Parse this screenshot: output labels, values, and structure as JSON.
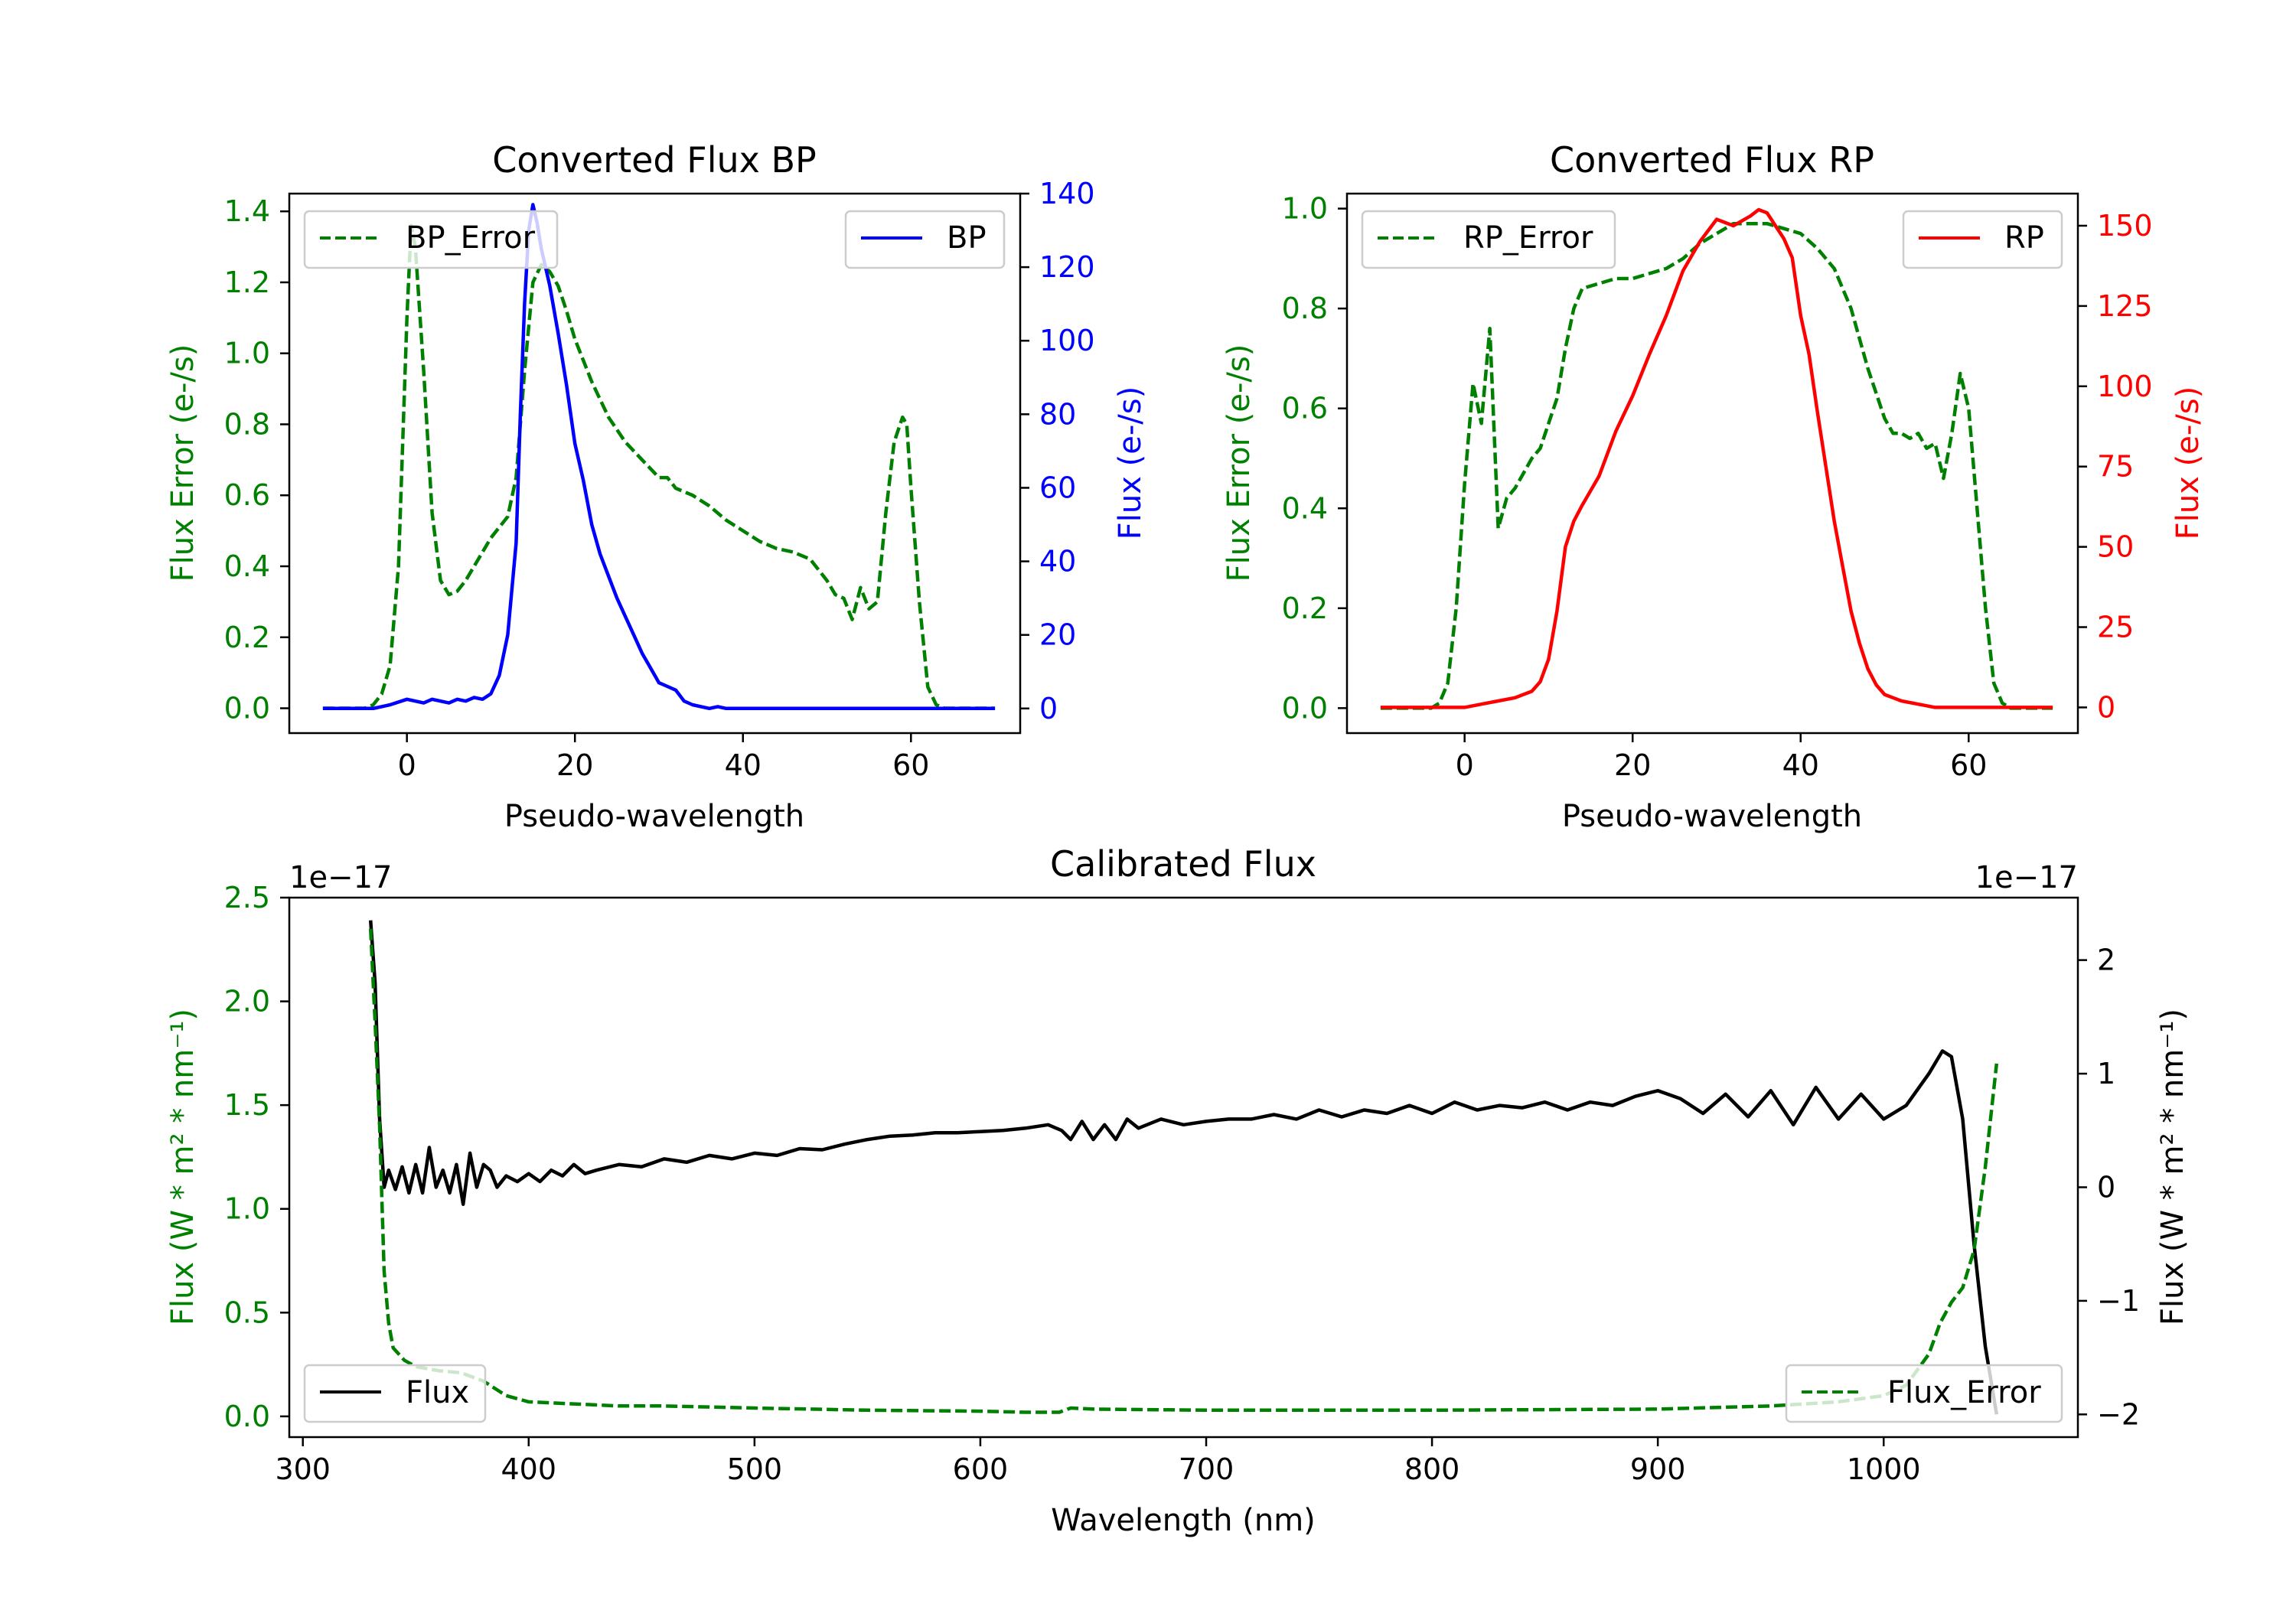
{
  "chart_data": [
    {
      "type": "line",
      "title": "Converted Flux BP",
      "xlabel": "Pseudo-wavelength",
      "ylabel_left": "Flux Error (e-/s)",
      "ylabel_right": "Flux (e-/s)",
      "xlim": [
        -14,
        73
      ],
      "ylim_left": [
        -0.07,
        1.45
      ],
      "ylim_right": [
        -6.7,
        140
      ],
      "x_ticks": [
        0,
        20,
        40,
        60
      ],
      "y_ticks_left": [
        0.0,
        0.2,
        0.4,
        0.6,
        0.8,
        1.0,
        1.2,
        1.4
      ],
      "y_ticks_right": [
        0,
        20,
        40,
        60,
        80,
        100,
        120,
        140
      ],
      "legend_left": {
        "label": "BP_Error",
        "placement": "upper-left"
      },
      "legend_right": {
        "label": "BP",
        "placement": "upper-right"
      },
      "series": [
        {
          "name": "BP_Error",
          "axis": "left",
          "color": "#008000",
          "dash": true,
          "x": [
            -10,
            -5,
            -4,
            -3,
            -2,
            -1,
            0,
            0.5,
            1,
            2,
            3,
            4,
            5,
            6,
            7,
            8,
            9,
            10,
            11,
            12,
            13,
            14,
            15,
            16,
            17,
            18,
            19,
            20,
            22,
            24,
            26,
            28,
            30,
            31,
            32,
            34,
            36,
            38,
            40,
            42,
            44,
            46,
            48,
            50,
            51,
            52,
            53,
            54,
            55,
            56,
            57,
            58,
            59,
            59.5,
            60,
            61,
            62,
            63,
            64,
            65,
            70
          ],
          "y": [
            0,
            0,
            0.01,
            0.04,
            0.12,
            0.4,
            1.1,
            1.36,
            1.3,
            0.95,
            0.55,
            0.36,
            0.32,
            0.33,
            0.36,
            0.4,
            0.44,
            0.48,
            0.51,
            0.54,
            0.65,
            0.95,
            1.2,
            1.25,
            1.23,
            1.19,
            1.12,
            1.04,
            0.92,
            0.82,
            0.75,
            0.7,
            0.65,
            0.65,
            0.62,
            0.6,
            0.57,
            0.53,
            0.5,
            0.47,
            0.45,
            0.44,
            0.42,
            0.36,
            0.32,
            0.31,
            0.25,
            0.34,
            0.28,
            0.3,
            0.55,
            0.75,
            0.82,
            0.8,
            0.62,
            0.3,
            0.06,
            0.01,
            0,
            0,
            0
          ]
        },
        {
          "name": "BP",
          "axis": "right",
          "color": "#0000ff",
          "dash": false,
          "x": [
            -10,
            -4,
            -2,
            0,
            1,
            2,
            3,
            4,
            5,
            6,
            7,
            8,
            9,
            10,
            11,
            12,
            13,
            13.5,
            14,
            14.5,
            15,
            15.5,
            16,
            17,
            18,
            19,
            20,
            21,
            22,
            23,
            24,
            25,
            26,
            27,
            28,
            29,
            30,
            31,
            32,
            33,
            34,
            35,
            36,
            37,
            38,
            40,
            42,
            44,
            46,
            48,
            50,
            52,
            54,
            56,
            58,
            60,
            62,
            64,
            70
          ],
          "y": [
            0,
            0,
            1,
            2.5,
            2,
            1.5,
            2.5,
            2,
            1.5,
            2.5,
            2,
            3,
            2.5,
            4,
            9,
            20,
            45,
            80,
            110,
            130,
            137,
            132,
            125,
            115,
            102,
            88,
            72,
            62,
            50,
            42,
            36,
            30,
            25,
            20,
            15,
            11,
            7,
            6,
            5,
            2,
            1,
            0.5,
            0,
            0.5,
            0,
            0,
            0,
            0,
            0,
            0,
            0,
            0,
            0,
            0,
            0,
            0,
            0,
            0,
            0
          ]
        }
      ]
    },
    {
      "type": "line",
      "title": "Converted Flux RP",
      "xlabel": "Pseudo-wavelength",
      "ylabel_left": "Flux Error (e-/s)",
      "ylabel_right": "Flux (e-/s)",
      "xlim": [
        -14,
        73
      ],
      "ylim_left": [
        -0.05,
        1.03
      ],
      "ylim_right": [
        -8,
        160
      ],
      "x_ticks": [
        0,
        20,
        40,
        60
      ],
      "y_ticks_left": [
        0.0,
        0.2,
        0.4,
        0.6,
        0.8,
        1.0
      ],
      "y_ticks_right": [
        0,
        25,
        50,
        75,
        100,
        125,
        150
      ],
      "legend_left": {
        "label": "RP_Error",
        "placement": "upper-left"
      },
      "legend_right": {
        "label": "RP",
        "placement": "upper-right"
      },
      "series": [
        {
          "name": "RP_Error",
          "axis": "left",
          "color": "#008000",
          "dash": true,
          "x": [
            -10,
            -4,
            -3,
            -2,
            -1,
            0,
            1,
            2,
            3,
            4,
            5,
            6,
            7,
            8,
            9,
            10,
            11,
            12,
            13,
            14,
            16,
            18,
            20,
            22,
            24,
            26,
            28,
            30,
            32,
            34,
            36,
            38,
            40,
            42,
            44,
            46,
            48,
            50,
            51,
            52,
            53,
            54,
            55,
            56,
            57,
            58,
            59,
            60,
            61,
            62,
            63,
            64,
            65,
            70
          ],
          "y": [
            0,
            0,
            0.01,
            0.05,
            0.2,
            0.45,
            0.65,
            0.57,
            0.76,
            0.36,
            0.42,
            0.44,
            0.47,
            0.5,
            0.52,
            0.57,
            0.62,
            0.72,
            0.8,
            0.84,
            0.85,
            0.86,
            0.86,
            0.87,
            0.88,
            0.9,
            0.93,
            0.95,
            0.97,
            0.97,
            0.97,
            0.96,
            0.95,
            0.92,
            0.88,
            0.8,
            0.68,
            0.58,
            0.55,
            0.55,
            0.54,
            0.55,
            0.52,
            0.53,
            0.46,
            0.55,
            0.67,
            0.6,
            0.4,
            0.2,
            0.05,
            0.01,
            0,
            0
          ]
        },
        {
          "name": "RP",
          "axis": "right",
          "color": "#ff0000",
          "dash": false,
          "x": [
            -10,
            0,
            2,
            4,
            6,
            8,
            9,
            10,
            11,
            12,
            13,
            14,
            16,
            18,
            20,
            22,
            24,
            26,
            28,
            30,
            32,
            34,
            35,
            36,
            37,
            38,
            39,
            40,
            41,
            42,
            43,
            44,
            45,
            46,
            47,
            48,
            49,
            50,
            51,
            52,
            54,
            56,
            58,
            60,
            64,
            70
          ],
          "y": [
            0,
            0,
            1,
            2,
            3,
            5,
            8,
            15,
            30,
            50,
            58,
            63,
            72,
            86,
            97,
            110,
            122,
            136,
            145,
            152,
            150,
            153,
            155,
            154,
            150,
            146,
            140,
            122,
            110,
            92,
            75,
            58,
            44,
            30,
            20,
            12,
            7,
            4,
            3,
            2,
            1,
            0,
            0,
            0,
            0,
            0
          ]
        }
      ]
    },
    {
      "type": "line",
      "title": "Calibrated Flux",
      "xlabel": "Wavelength (nm)",
      "ylabel_left": "Flux (W * m² * nm⁻¹)",
      "ylabel_right": "Flux (W * m² * nm⁻¹)",
      "offset_left": "1e−17",
      "offset_right": "1e−17",
      "xlim": [
        294,
        1086
      ],
      "ylim_left": [
        -0.1,
        2.5
      ],
      "ylim_right": [
        -2.2,
        2.55
      ],
      "x_ticks": [
        300,
        400,
        500,
        600,
        700,
        800,
        900,
        1000
      ],
      "y_ticks_left": [
        0.0,
        0.5,
        1.0,
        1.5,
        2.0,
        2.5
      ],
      "y_ticks_right": [
        -2,
        -1,
        0,
        1,
        2
      ],
      "legend_left": {
        "label": "Flux",
        "placement": "lower-left"
      },
      "legend_right": {
        "label": "Flux_Error",
        "placement": "lower-right"
      },
      "series": [
        {
          "name": "Flux",
          "axis": "right",
          "color": "#000000",
          "dash": false,
          "x": [
            330,
            332,
            334,
            336,
            338,
            341,
            344,
            347,
            350,
            353,
            356,
            359,
            362,
            365,
            368,
            371,
            374,
            377,
            380,
            383,
            386,
            390,
            395,
            400,
            405,
            410,
            415,
            420,
            425,
            430,
            440,
            450,
            460,
            470,
            480,
            490,
            500,
            510,
            520,
            530,
            540,
            550,
            560,
            570,
            580,
            590,
            600,
            610,
            620,
            630,
            636,
            640,
            645,
            650,
            655,
            660,
            665,
            670,
            680,
            690,
            700,
            710,
            720,
            730,
            740,
            750,
            760,
            770,
            780,
            790,
            800,
            810,
            820,
            830,
            840,
            850,
            860,
            870,
            880,
            890,
            900,
            910,
            920,
            930,
            940,
            950,
            960,
            970,
            980,
            990,
            1000,
            1010,
            1020,
            1026,
            1030,
            1035,
            1040,
            1045,
            1050
          ],
          "y": [
            2.35,
            1.8,
            0.6,
            0.0,
            0.15,
            -0.02,
            0.18,
            -0.05,
            0.2,
            -0.05,
            0.35,
            0.0,
            0.15,
            -0.05,
            0.2,
            -0.15,
            0.3,
            0.0,
            0.2,
            0.15,
            0.0,
            0.1,
            0.05,
            0.12,
            0.05,
            0.15,
            0.1,
            0.2,
            0.12,
            0.15,
            0.2,
            0.18,
            0.25,
            0.22,
            0.28,
            0.25,
            0.3,
            0.28,
            0.34,
            0.33,
            0.38,
            0.42,
            0.45,
            0.46,
            0.48,
            0.48,
            0.49,
            0.5,
            0.52,
            0.55,
            0.5,
            0.42,
            0.58,
            0.42,
            0.55,
            0.42,
            0.6,
            0.52,
            0.6,
            0.55,
            0.58,
            0.6,
            0.6,
            0.64,
            0.6,
            0.68,
            0.62,
            0.68,
            0.65,
            0.72,
            0.65,
            0.75,
            0.68,
            0.72,
            0.7,
            0.75,
            0.68,
            0.75,
            0.72,
            0.8,
            0.85,
            0.78,
            0.65,
            0.82,
            0.62,
            0.85,
            0.55,
            0.88,
            0.6,
            0.82,
            0.6,
            0.72,
            1.0,
            1.2,
            1.15,
            0.6,
            -0.5,
            -1.4,
            -2.0
          ]
        },
        {
          "name": "Flux_Error",
          "axis": "left",
          "color": "#008000",
          "dash": true,
          "x": [
            330,
            332,
            334,
            336,
            338,
            340,
            345,
            350,
            360,
            370,
            380,
            390,
            400,
            420,
            440,
            460,
            500,
            550,
            600,
            620,
            635,
            640,
            650,
            700,
            800,
            900,
            950,
            980,
            1000,
            1010,
            1020,
            1025,
            1030,
            1035,
            1040,
            1045,
            1050
          ],
          "y": [
            2.35,
            1.9,
            1.4,
            0.7,
            0.45,
            0.33,
            0.27,
            0.24,
            0.22,
            0.21,
            0.17,
            0.1,
            0.07,
            0.06,
            0.05,
            0.05,
            0.04,
            0.03,
            0.025,
            0.02,
            0.02,
            0.04,
            0.035,
            0.03,
            0.03,
            0.035,
            0.05,
            0.07,
            0.1,
            0.15,
            0.3,
            0.45,
            0.55,
            0.62,
            0.8,
            1.2,
            1.7
          ]
        }
      ]
    }
  ]
}
